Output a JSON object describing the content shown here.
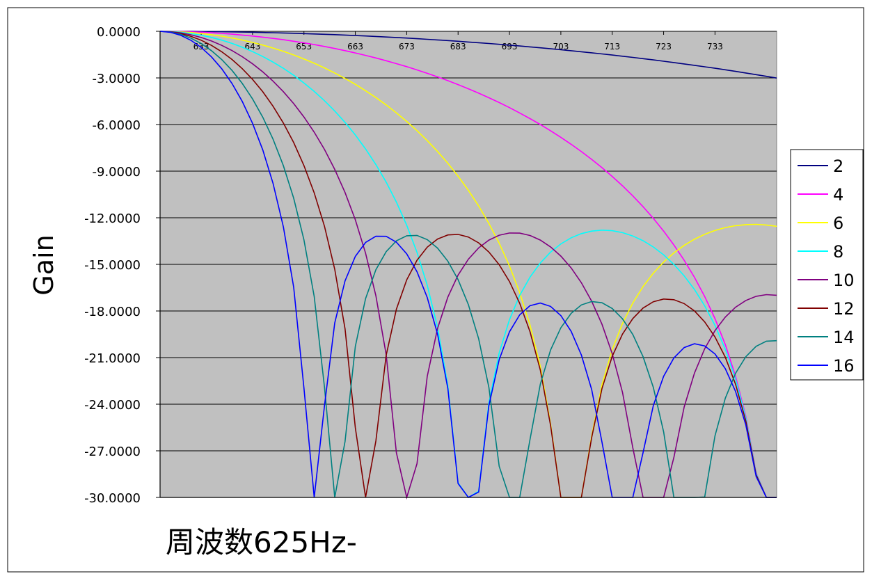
{
  "chart_data": {
    "type": "line",
    "title": "",
    "xlabel": "周波数625Hz-",
    "ylabel": "Gain",
    "x_start": 625,
    "x_end": 745,
    "x_ticks": [
      633,
      643,
      653,
      663,
      673,
      683,
      693,
      703,
      713,
      723,
      733
    ],
    "x_tick_labels": [
      "633",
      "643",
      "653",
      "663",
      "673",
      "683",
      "693",
      "703",
      "713",
      "723",
      "733"
    ],
    "ylim": [
      -30,
      0
    ],
    "y_ticks": [
      0,
      -3,
      -6,
      -9,
      -12,
      -15,
      -18,
      -21,
      -24,
      -27,
      -30
    ],
    "y_tick_labels": [
      "0.0000",
      "-3.0000",
      "-6.0000",
      "-9.0000",
      "-12.0000",
      "-15.0000",
      "-18.0000",
      "-21.0000",
      "-24.0000",
      "-27.0000",
      "-30.0000"
    ],
    "grid": "horizontal",
    "legend_position": "right",
    "plot_background": "#c0c0c0",
    "series": [
      {
        "name": "2",
        "order": 2,
        "color": "#000080"
      },
      {
        "name": "4",
        "order": 4,
        "color": "#ff00ff"
      },
      {
        "name": "6",
        "order": 6,
        "color": "#ffff00"
      },
      {
        "name": "8",
        "order": 8,
        "color": "#00ffff"
      },
      {
        "name": "10",
        "order": 10,
        "color": "#800080"
      },
      {
        "name": "12",
        "order": 12,
        "color": "#800000"
      },
      {
        "name": "14",
        "order": 14,
        "color": "#008080"
      },
      {
        "name": "16",
        "order": 16,
        "color": "#0000ff"
      }
    ],
    "series_formula": "20*log10(|sin(n*pi*(f-625)/480)/(n*sin(pi*(f-625)/480))|) sampled every 2 Hz from 625 to 745, clipped at -30"
  }
}
